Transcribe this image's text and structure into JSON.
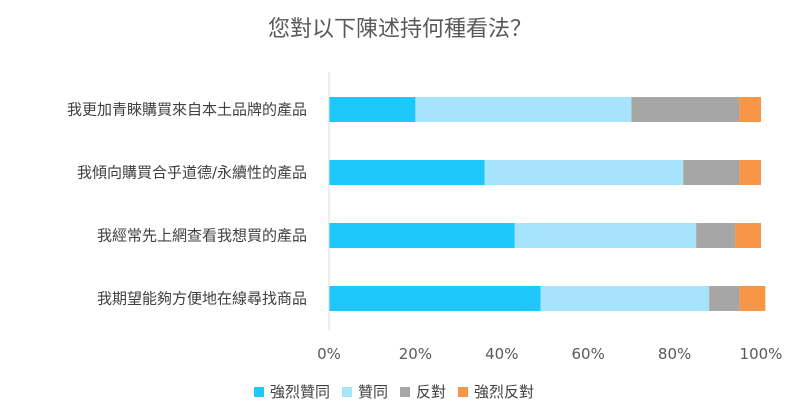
{
  "chart_data": {
    "type": "bar",
    "orientation": "horizontal",
    "stacked": "percent",
    "title": "您對以下陳述持何種看法？",
    "categories": [
      "我更加青睞購買來自本土品牌的產品",
      "我傾向購買合乎道德/永續性的產品",
      "我經常先上網查看我想買的產品",
      "我期望能夠方便地在線尋找商品"
    ],
    "series": [
      {
        "name": "強烈贊同",
        "color": "#1ec8fa",
        "values": [
          20,
          36,
          43,
          49
        ]
      },
      {
        "name": "贊同",
        "color": "#a6e4fb",
        "values": [
          50,
          46,
          42,
          39
        ]
      },
      {
        "name": "反對",
        "color": "#a6a6a6",
        "values": [
          25,
          13,
          9,
          7
        ]
      },
      {
        "name": "強烈反對",
        "color": "#f79646",
        "values": [
          5,
          5,
          6,
          6
        ]
      }
    ],
    "x_ticks": [
      "0%",
      "20%",
      "40%",
      "60%",
      "80%",
      "100%"
    ],
    "xlim": [
      0,
      100
    ],
    "legend_position": "bottom",
    "grid": false
  }
}
